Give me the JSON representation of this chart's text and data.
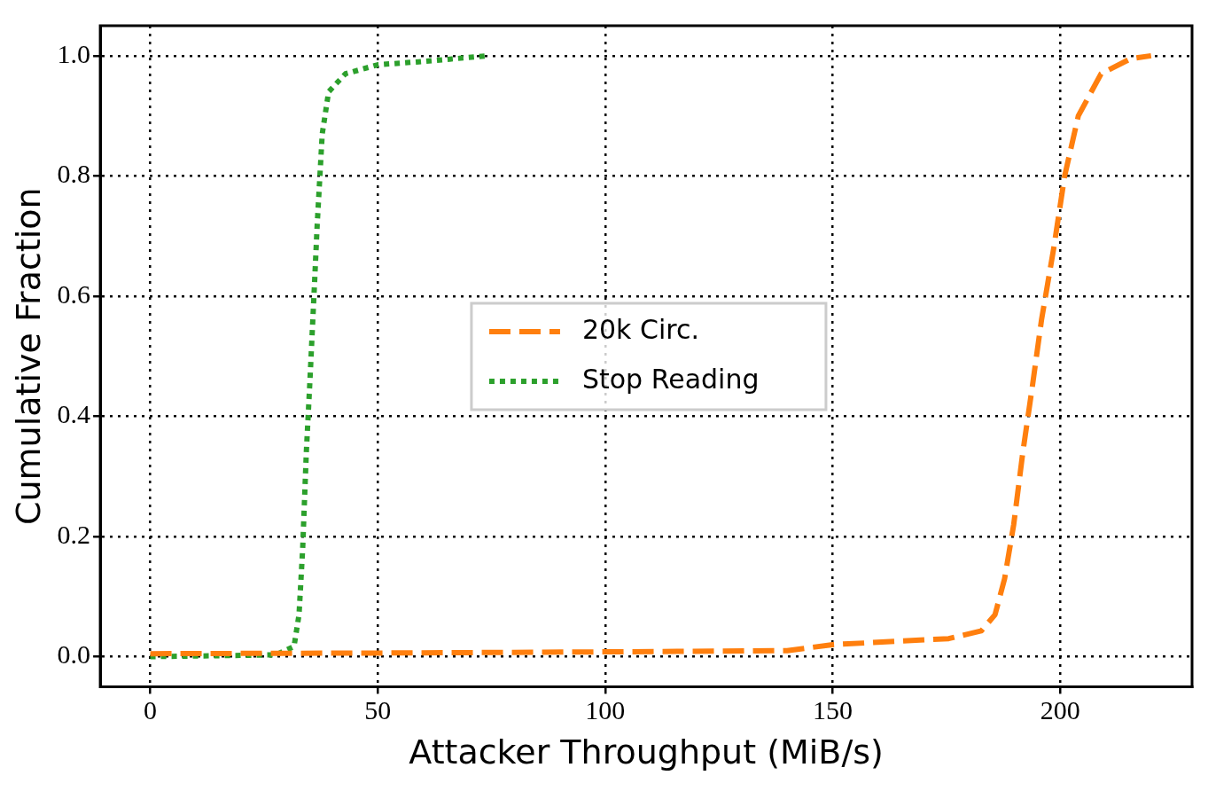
{
  "chart_data": {
    "type": "line",
    "xlabel": "Attacker Throughput (MiB/s)",
    "ylabel": "Cumulative Fraction",
    "xlim": [
      -11,
      229
    ],
    "ylim": [
      -0.05,
      1.05
    ],
    "xticks": [
      0,
      50,
      100,
      150,
      200
    ],
    "yticks": [
      {
        "value": 0,
        "label": "0.0"
      },
      {
        "value": 0.2,
        "label": "0.2"
      },
      {
        "value": 0.4,
        "label": "0.4"
      },
      {
        "value": 0.6,
        "label": "0.6"
      },
      {
        "value": 0.8,
        "label": "0.8"
      },
      {
        "value": 1,
        "label": "1.0"
      }
    ],
    "grid": true,
    "legend": "center",
    "marker": "none",
    "series": [
      {
        "name": "20k Circ.",
        "color": "#ff7f0e",
        "line_style": "dashed",
        "x": [
          0,
          50,
          100,
          140,
          150,
          175.5,
          182.7,
          185.7,
          187.8,
          189.8,
          191.8,
          193.9,
          195.9,
          198.6,
          201,
          204,
          209,
          215.5,
          220
        ],
        "values": [
          0.005,
          0.006,
          0.008,
          0.01,
          0.02,
          0.03,
          0.043,
          0.07,
          0.13,
          0.22,
          0.34,
          0.45,
          0.56,
          0.68,
          0.8,
          0.9,
          0.97,
          0.995,
          1.0
        ]
      },
      {
        "name": "Stop Reading",
        "color": "#2ca02c",
        "line_style": "dotted",
        "x": [
          0,
          27.6,
          31.6,
          32.7,
          33.5,
          34.3,
          35.1,
          36.1,
          36.7,
          37.8,
          39.2,
          42.9,
          50,
          59,
          74.5
        ],
        "values": [
          0,
          0.003,
          0.017,
          0.07,
          0.18,
          0.34,
          0.46,
          0.62,
          0.72,
          0.87,
          0.94,
          0.97,
          0.985,
          0.99,
          1.0
        ]
      }
    ]
  }
}
